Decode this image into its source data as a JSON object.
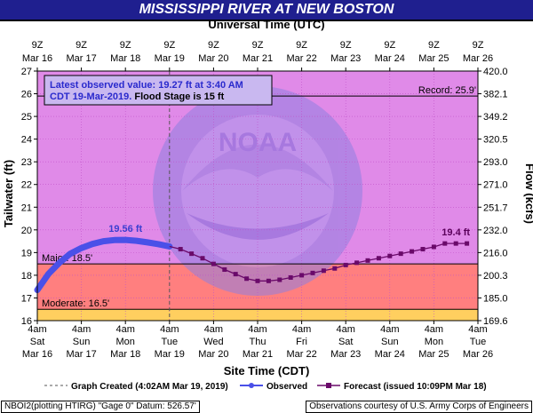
{
  "title": "MISSISSIPPI RIVER AT NEW BOSTON",
  "top_axis_title": "Universal Time (UTC)",
  "bottom_axis_title": "Site Time (CDT)",
  "left_axis_title": "Tailwater (ft)",
  "right_axis_title": "Flow (kcfs)",
  "top_ticks": [
    {
      "l1": "9Z",
      "l2": "Mar 16"
    },
    {
      "l1": "9Z",
      "l2": "Mar 17"
    },
    {
      "l1": "9Z",
      "l2": "Mar 18"
    },
    {
      "l1": "9Z",
      "l2": "Mar 19"
    },
    {
      "l1": "9Z",
      "l2": "Mar 20"
    },
    {
      "l1": "9Z",
      "l2": "Mar 21"
    },
    {
      "l1": "9Z",
      "l2": "Mar 22"
    },
    {
      "l1": "9Z",
      "l2": "Mar 23"
    },
    {
      "l1": "9Z",
      "l2": "Mar 24"
    },
    {
      "l1": "9Z",
      "l2": "Mar 25"
    },
    {
      "l1": "9Z",
      "l2": "Mar 26"
    }
  ],
  "bottom_ticks": [
    {
      "l1": "4am",
      "l2": "Sat",
      "l3": "Mar 16"
    },
    {
      "l1": "4am",
      "l2": "Sun",
      "l3": "Mar 17"
    },
    {
      "l1": "4am",
      "l2": "Mon",
      "l3": "Mar 18"
    },
    {
      "l1": "4am",
      "l2": "Tue",
      "l3": "Mar 19"
    },
    {
      "l1": "4am",
      "l2": "Wed",
      "l3": "Mar 20"
    },
    {
      "l1": "4am",
      "l2": "Thu",
      "l3": "Mar 21"
    },
    {
      "l1": "4am",
      "l2": "Fri",
      "l3": "Mar 22"
    },
    {
      "l1": "4am",
      "l2": "Sat",
      "l3": "Mar 23"
    },
    {
      "l1": "4am",
      "l2": "Sun",
      "l3": "Mar 24"
    },
    {
      "l1": "4am",
      "l2": "Mon",
      "l3": "Mar 25"
    },
    {
      "l1": "4am",
      "l2": "Tue",
      "l3": "Mar 26"
    }
  ],
  "left_ticks": [
    "16",
    "17",
    "18",
    "19",
    "20",
    "21",
    "22",
    "23",
    "24",
    "25",
    "26",
    "27"
  ],
  "right_ticks": [
    "169.6",
    "185.0",
    "200.3",
    "216.0",
    "232.0",
    "251.7",
    "271.0",
    "293.0",
    "320.5",
    "349.2",
    "382.1",
    "420.0"
  ],
  "colors": {
    "title_bg": "#1f1f8f",
    "plot_bg": "#e08ae8",
    "major_zone": "#ff7f7f",
    "moderate_zone": "#ffcf5f",
    "observed": "#4a50e8",
    "forecast": "#6a0a6a",
    "grid": "#c050c8",
    "logo_fill": "#8f80e0"
  },
  "info_box": {
    "line1": "Latest observed value: 19.27 ft at 3:40 AM",
    "line2a": "CDT 19-Mar-2019.",
    "line2b": " Flood Stage is 15 ft"
  },
  "thresholds": {
    "record_label": "Record: 25.9'",
    "major_label": "Major: 18.5'",
    "moderate_label": "Moderate: 16.5'"
  },
  "logo": {
    "center_text": "NOAA",
    "ring_text": "NATIONAL OCEANIC AND ATMOSPHERIC ADMINISTRATION · U.S. DEPARTMENT OF COMMERCE"
  },
  "annotations": {
    "observed_peak": "19.56 ft",
    "forecast_peak": "19.4 ft"
  },
  "legend": {
    "created": "Graph Created (4:02AM Mar 19, 2019)",
    "observed": "Observed",
    "forecast": "Forecast (issued 10:09PM Mar 18)"
  },
  "footer": {
    "left": "NBOI2(plotting HTIRG) \"Gage 0\" Datum: 526.57'",
    "right": "Observations courtesy of U.S. Army Corps of Engineers"
  },
  "chart_data": {
    "type": "line",
    "title": "MISSISSIPPI RIVER AT NEW BOSTON",
    "xlabel": "Site Time (CDT)",
    "ylabel": "Tailwater (ft)",
    "y2label": "Flow (kcfs)",
    "x_unit": "days after 4am Sat Mar 16 (CDT)",
    "xlim": [
      0,
      10
    ],
    "ylim": [
      16,
      27
    ],
    "grid": true,
    "legend_position": "bottom",
    "graph_created_x": 3.0,
    "thresholds": {
      "record": 25.9,
      "major": 18.5,
      "moderate": 16.5,
      "flood_stage": 15
    },
    "series": [
      {
        "name": "Observed",
        "x": [
          0.0,
          0.25,
          0.5,
          0.75,
          1.0,
          1.25,
          1.5,
          1.75,
          2.0,
          2.25,
          2.5,
          2.75,
          3.0
        ],
        "y": [
          17.35,
          18.05,
          18.55,
          18.95,
          19.2,
          19.38,
          19.5,
          19.55,
          19.56,
          19.52,
          19.45,
          19.37,
          19.27
        ]
      },
      {
        "name": "Forecast (issued 10:09PM Mar 18)",
        "x": [
          3.25,
          3.5,
          3.75,
          4.0,
          4.25,
          4.5,
          4.75,
          5.0,
          5.25,
          5.5,
          5.75,
          6.0,
          6.25,
          6.5,
          6.75,
          7.0,
          7.25,
          7.5,
          7.75,
          8.0,
          8.25,
          8.5,
          8.75,
          9.0,
          9.25,
          9.5,
          9.75
        ],
        "y": [
          19.15,
          18.95,
          18.75,
          18.5,
          18.25,
          18.05,
          17.85,
          17.75,
          17.75,
          17.8,
          17.9,
          18.0,
          18.1,
          18.2,
          18.3,
          18.45,
          18.55,
          18.65,
          18.75,
          18.85,
          18.95,
          19.05,
          19.15,
          19.25,
          19.4,
          19.4,
          19.4
        ]
      }
    ],
    "annotations": [
      {
        "text": "19.56 ft",
        "x": 2.0,
        "y": 19.56
      },
      {
        "text": "19.4 ft",
        "x": 9.5,
        "y": 19.4
      }
    ]
  }
}
